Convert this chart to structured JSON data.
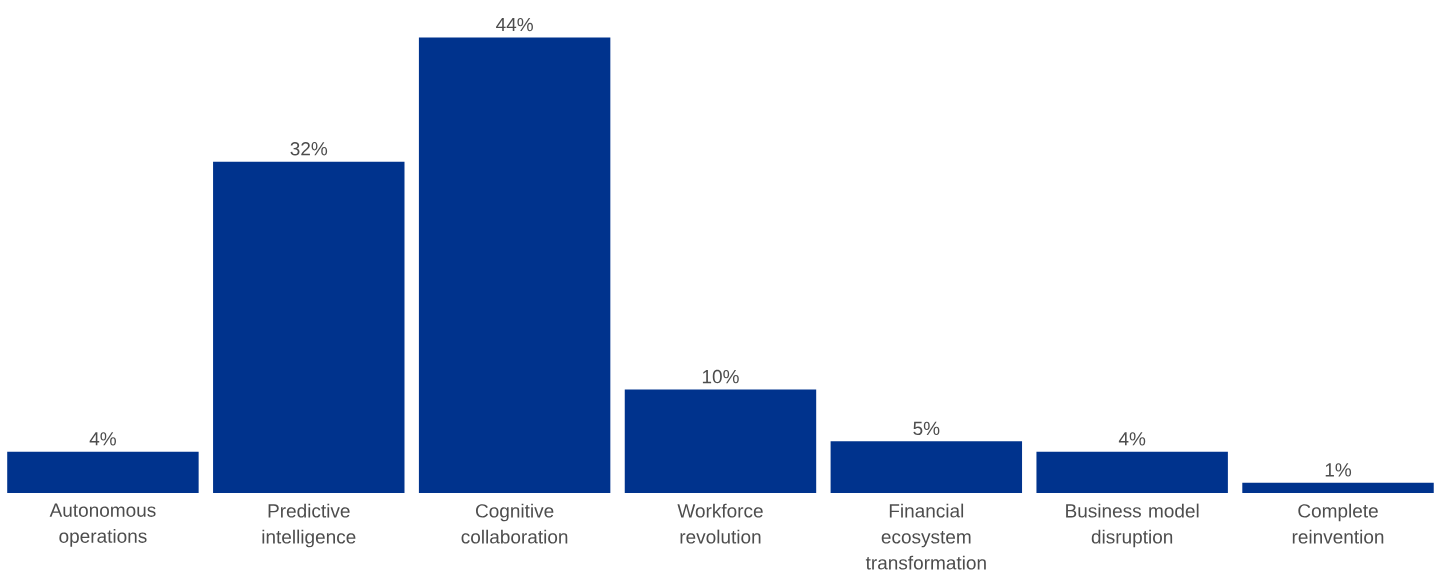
{
  "chart_data": {
    "type": "bar",
    "categories": [
      "Autonomous operations",
      "Predictive intelligence",
      "Cognitive collaboration",
      "Workforce revolution",
      "Financial ecosystem transformation",
      "Business model disruption",
      "Complete reinvention"
    ],
    "values": [
      4,
      32,
      44,
      10,
      5,
      4,
      1
    ],
    "value_labels": [
      "4%",
      "32%",
      "44%",
      "10%",
      "5%",
      "4%",
      "1%"
    ],
    "color": "#00338d"
  }
}
